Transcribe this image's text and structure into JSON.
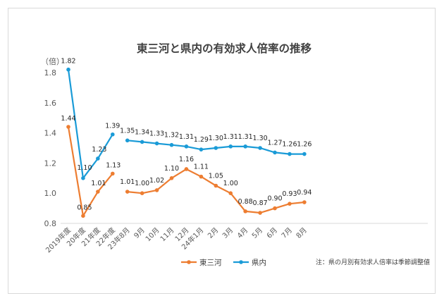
{
  "chart_data": {
    "type": "line",
    "title": "東三河と県内の有効求人倍率の推移",
    "y_unit": "（倍）",
    "ylim": [
      0.8,
      1.8
    ],
    "y_ticks": [
      "0.8",
      "1.0",
      "1.2",
      "1.4",
      "1.6",
      "1.8"
    ],
    "y_tick_values": [
      0.8,
      1.0,
      1.2,
      1.4,
      1.6,
      1.8
    ],
    "grid": false,
    "legend_position": "bottom-left",
    "categories": [
      "2019年度",
      "20年度",
      "21年度",
      "22年度",
      "23年8月",
      "9月",
      "10月",
      "11月",
      "12月",
      "24年1月",
      "2月",
      "3月",
      "4月",
      "5月",
      "6月",
      "7月",
      "8月"
    ],
    "segments": [
      [
        0,
        3
      ],
      [
        4,
        16
      ]
    ],
    "series": [
      {
        "name": "東三河",
        "color": "#ed7d31",
        "values": [
          1.44,
          0.85,
          1.01,
          1.13,
          1.01,
          1.0,
          1.02,
          1.1,
          1.16,
          1.11,
          1.05,
          1.0,
          0.88,
          0.87,
          0.9,
          0.93,
          0.94
        ],
        "labels": [
          "1.44",
          "0.85",
          "1.01",
          "1.13",
          "1.01",
          "1.00",
          "1.02",
          "1.10",
          "1.16",
          "1.11",
          "1.05",
          "1.00",
          "0.88",
          "0.87",
          "0.90",
          "0.93",
          "0.94"
        ]
      },
      {
        "name": "県内",
        "color": "#1a9bd7",
        "values": [
          1.82,
          1.1,
          1.23,
          1.39,
          1.35,
          1.34,
          1.33,
          1.32,
          1.31,
          1.29,
          1.3,
          1.31,
          1.31,
          1.3,
          1.27,
          1.26,
          1.26
        ],
        "labels": [
          "1.82",
          "1.10",
          "1.23",
          "1.39",
          "1.35",
          "1.34",
          "1.33",
          "1.32",
          "1.31",
          "1.29",
          "1.30",
          "1.31",
          "1.31",
          "1.30",
          "1.27",
          "1.26",
          "1.26"
        ]
      }
    ],
    "annotation": "注：県の月別有効求人倍率は季節調整値"
  }
}
